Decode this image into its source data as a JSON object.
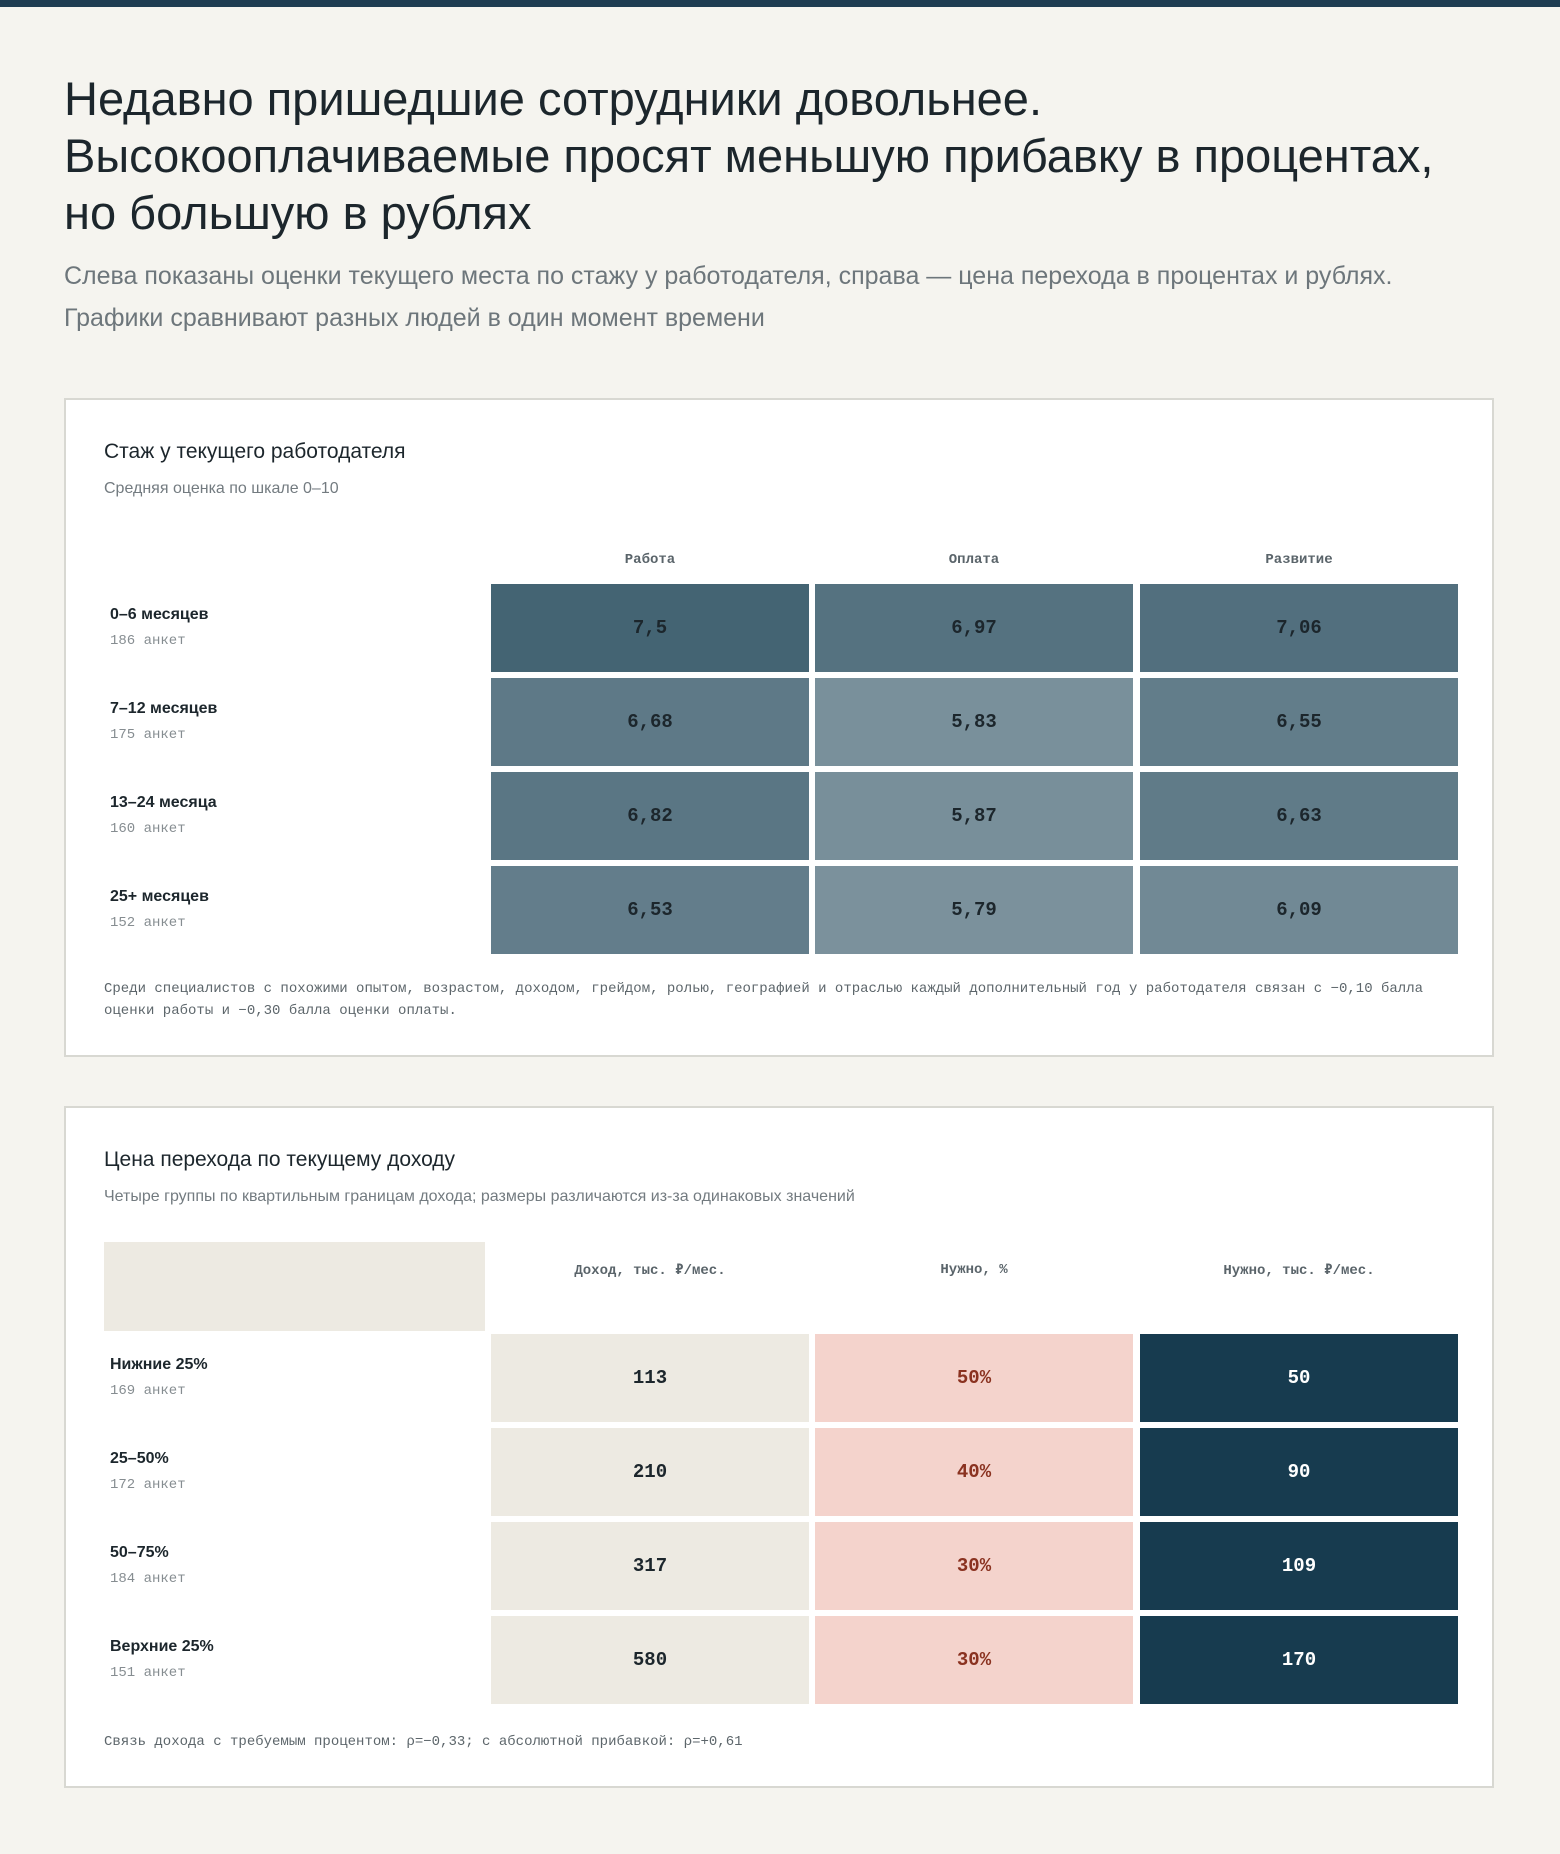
{
  "headline": [
    "Недавно пришедшие сотрудники довольнее.",
    "Высокооплачиваемые просят меньшую прибавку в процентах,",
    "но большую в рублях"
  ],
  "subtitle": [
    "Слева показаны оценки текущего места по стажу у работодателя, справа — цена перехода в процентах и рублях.",
    "Графики сравнивают разных людей в один момент времени"
  ],
  "tenure": {
    "title": "Стаж у текущего работодателя",
    "subtitle": "Средняя оценка по шкале 0–10",
    "columns": [
      "Работа",
      "Оплата",
      "Развитие"
    ],
    "rows": [
      {
        "label": "0–6 месяцев",
        "count": "186 анкет",
        "values": [
          "7,5",
          "6,97",
          "7,06"
        ]
      },
      {
        "label": "7–12 месяцев",
        "count": "175 анкет",
        "values": [
          "6,68",
          "5,83",
          "6,55"
        ]
      },
      {
        "label": "13–24 месяца",
        "count": "160 анкет",
        "values": [
          "6,82",
          "5,87",
          "6,63"
        ]
      },
      {
        "label": "25+ месяцев",
        "count": "152 анкет",
        "values": [
          "6,53",
          "5,79",
          "6,09"
        ]
      }
    ],
    "note": [
      "Среди специалистов с похожими опытом, возрастом, доходом, грейдом, ролью, географией и отраслью каждый дополнительный год у работодателя связан с −0,10 балла",
      "оценки работы и −0,30 балла оценки оплаты."
    ]
  },
  "income": {
    "title": "Цена перехода по текущему доходу",
    "subtitle": "Четыре группы по квартильным границам дохода; размеры различаются из-за одинаковых значений",
    "columns": [
      "Доход, тыс. ₽/мес.",
      "Нужно, %",
      "Нужно, тыс. ₽/мес."
    ],
    "rows": [
      {
        "label": "Нижние 25%",
        "count": "169 анкет",
        "values": [
          "113",
          "50%",
          "50"
        ]
      },
      {
        "label": "25–50%",
        "count": "172 анкет",
        "values": [
          "210",
          "40%",
          "90"
        ]
      },
      {
        "label": "50–75%",
        "count": "184 анкет",
        "values": [
          "317",
          "30%",
          "109"
        ]
      },
      {
        "label": "Верхние 25%",
        "count": "151 анкет",
        "values": [
          "580",
          "30%",
          "170"
        ]
      }
    ],
    "note": "Связь дохода с требуемым процентом: ρ=−0,33; с абсолютной прибавкой: ρ=+0,61"
  },
  "colors": {
    "heat_base": "#1f4558",
    "income_cell": "#edeae2",
    "percent_cell": "#f4d3cc",
    "percent_text": "#8a3220",
    "rub_cell": "#173b4f"
  },
  "chart_data": [
    {
      "type": "heatmap",
      "title": "Стаж у текущего работодателя",
      "subtitle": "Средняя оценка по шкале 0–10",
      "x": [
        "Работа",
        "Оплата",
        "Развитие"
      ],
      "y": [
        "0–6 месяцев",
        "7–12 месяцев",
        "13–24 месяца",
        "25+ месяцев"
      ],
      "counts": [
        186,
        175,
        160,
        152
      ],
      "values": [
        [
          7.5,
          6.97,
          7.06
        ],
        [
          6.68,
          5.83,
          6.55
        ],
        [
          6.82,
          5.87,
          6.63
        ],
        [
          6.53,
          5.79,
          6.09
        ]
      ],
      "scale": [
        0,
        10
      ]
    },
    {
      "type": "table",
      "title": "Цена перехода по текущему доходу",
      "x": [
        "Доход, тыс. ₽/мес.",
        "Нужно, %",
        "Нужно, тыс. ₽/мес."
      ],
      "y": [
        "Нижние 25%",
        "25–50%",
        "50–75%",
        "Верхние 25%"
      ],
      "counts": [
        169,
        172,
        184,
        151
      ],
      "values": [
        [
          113,
          50,
          50
        ],
        [
          210,
          40,
          90
        ],
        [
          317,
          30,
          109
        ],
        [
          580,
          30,
          170
        ]
      ]
    }
  ]
}
